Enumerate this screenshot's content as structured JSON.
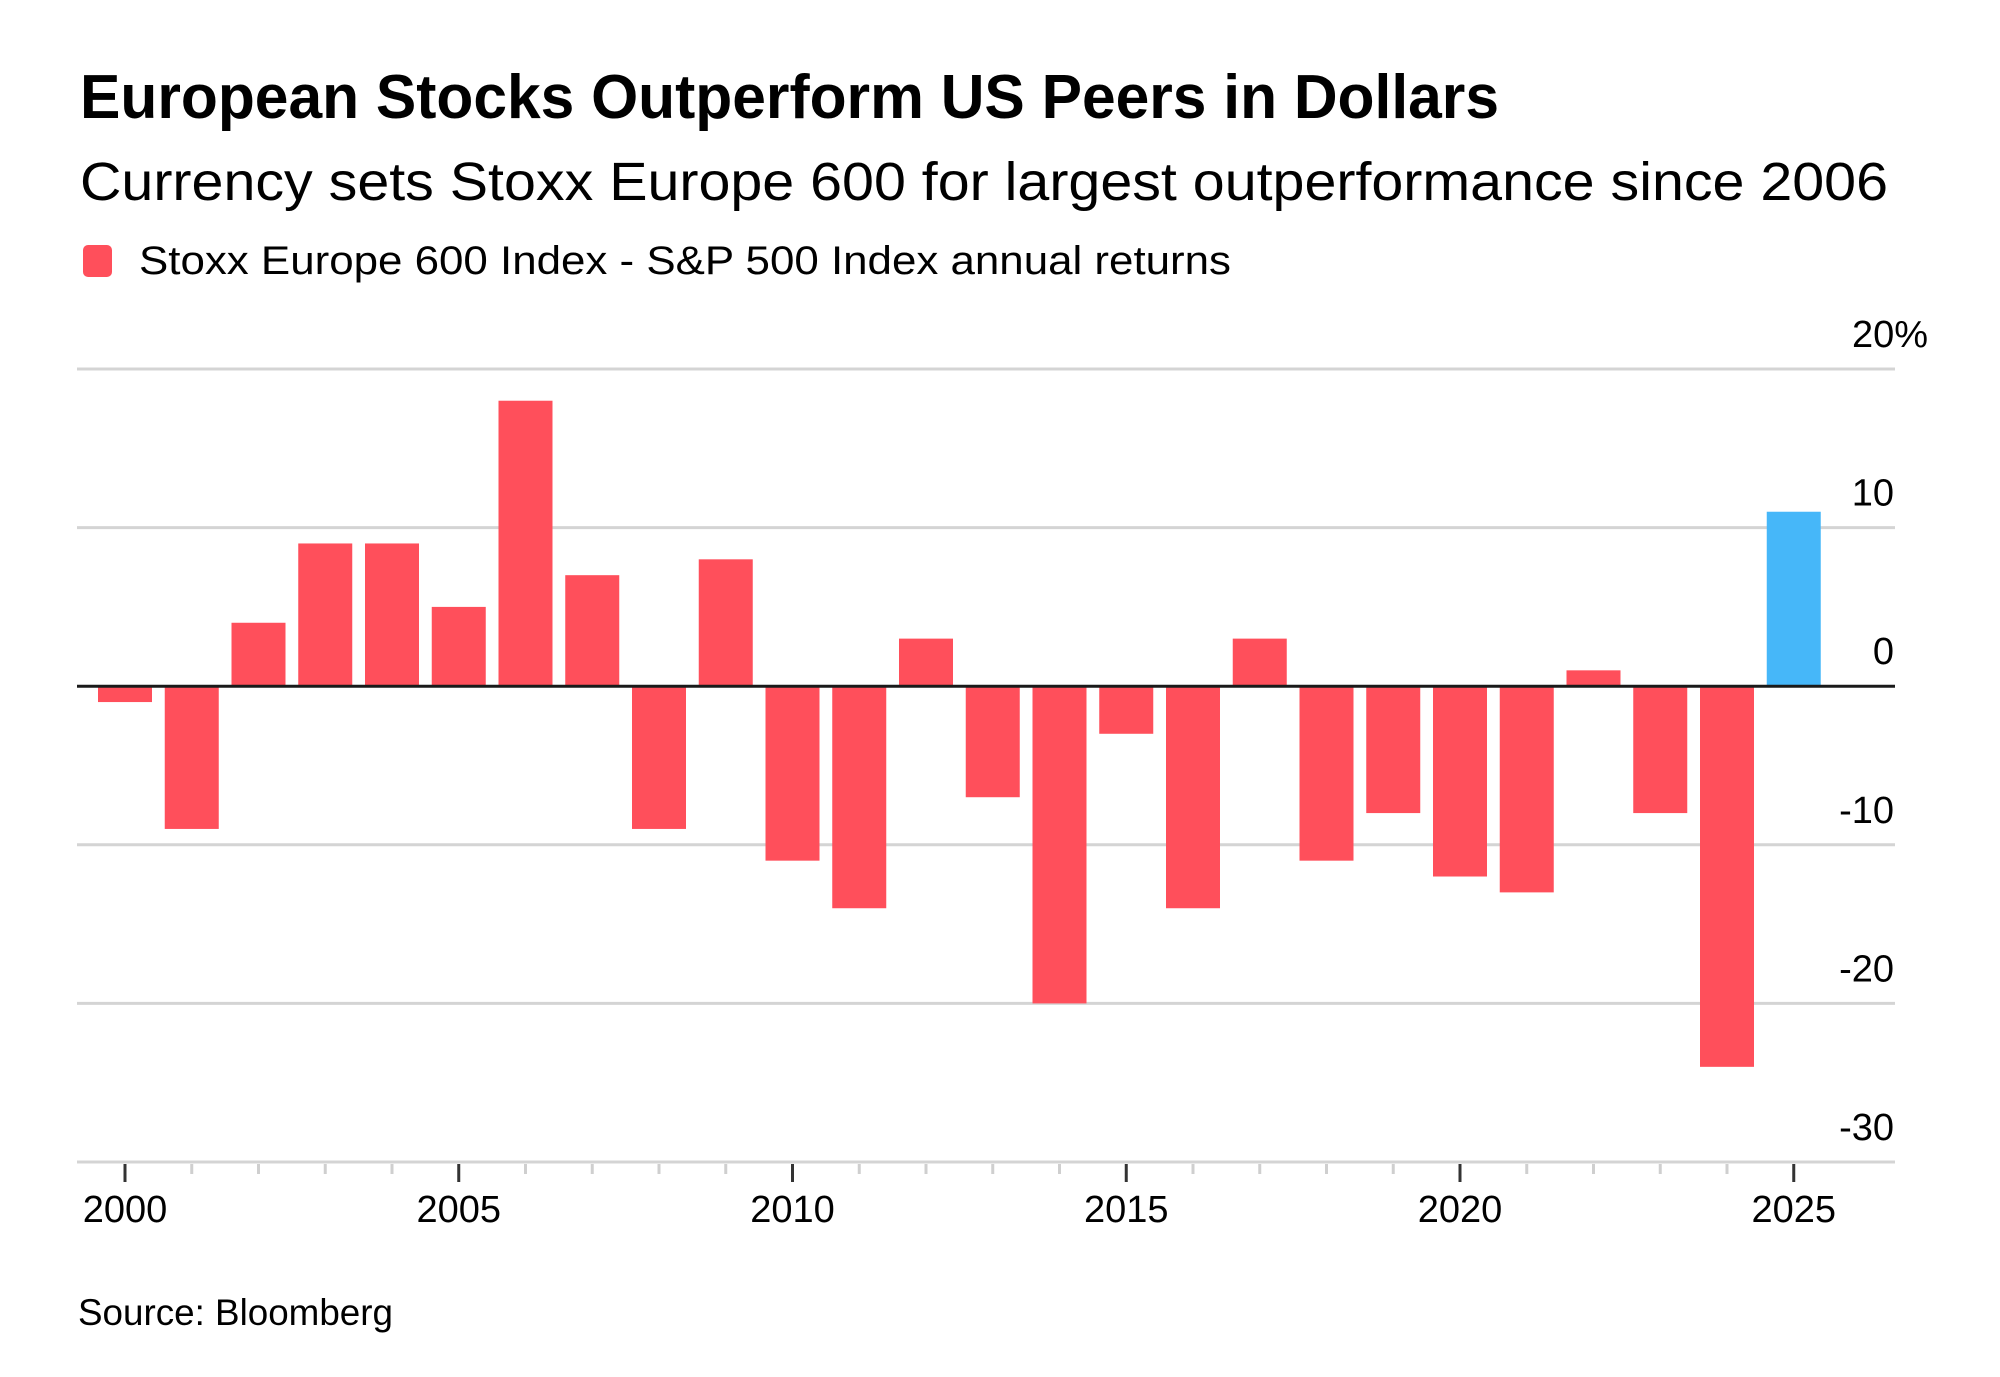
{
  "chart_data": {
    "type": "bar",
    "title": "European Stocks Outperform US Peers in Dollars",
    "subtitle": "Currency sets Stoxx Europe 600 for largest outperformance since 2006",
    "legend": [
      {
        "label": "Stoxx Europe 600 Index - S&P 500 Index annual returns",
        "color": "#FF4F5B"
      }
    ],
    "legend_placement": "top-left",
    "xlabel": "",
    "ylabel": "",
    "y_unit": "%",
    "ylim": [
      -30,
      20
    ],
    "yticks": [
      20,
      10,
      0,
      -10,
      -20,
      -30
    ],
    "ytick_labels": [
      "20%",
      "10",
      "0",
      "-10",
      "-20",
      "-30"
    ],
    "y_axis_side": "right",
    "xticks_major": [
      2000,
      2005,
      2010,
      2015,
      2020,
      2025
    ],
    "xtick_labels": [
      "2000",
      "2005",
      "2010",
      "2015",
      "2020",
      "2025"
    ],
    "grid": true,
    "categories": [
      2000,
      2001,
      2002,
      2003,
      2004,
      2005,
      2006,
      2007,
      2008,
      2009,
      2010,
      2011,
      2012,
      2013,
      2014,
      2015,
      2016,
      2017,
      2018,
      2019,
      2020,
      2021,
      2022,
      2023,
      2024,
      2025
    ],
    "series": [
      {
        "name": "Stoxx Europe 600 Index - S&P 500 Index annual returns",
        "values": [
          -1,
          -9,
          4,
          9,
          9,
          5,
          18,
          7,
          -9,
          8,
          -11,
          -14,
          3,
          -7,
          -20,
          -3,
          -14,
          3,
          -11,
          -8,
          -12,
          -13,
          1,
          -8,
          -24,
          11
        ],
        "color": "#FF4F5B"
      }
    ],
    "highlight": {
      "category": 2025,
      "color": "#46B7F9"
    },
    "source": "Source: Bloomberg"
  }
}
